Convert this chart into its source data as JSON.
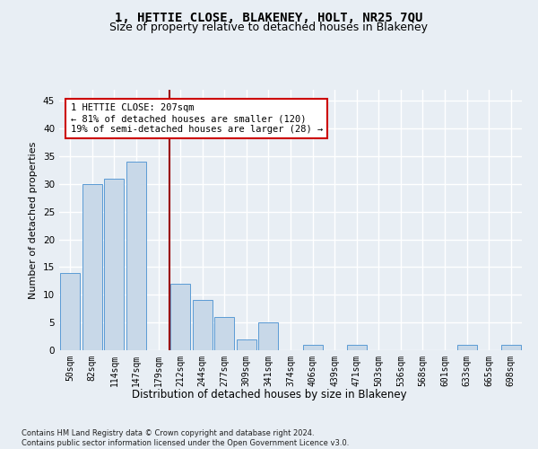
{
  "title": "1, HETTIE CLOSE, BLAKENEY, HOLT, NR25 7QU",
  "subtitle": "Size of property relative to detached houses in Blakeney",
  "xlabel": "Distribution of detached houses by size in Blakeney",
  "ylabel": "Number of detached properties",
  "bar_labels": [
    "50sqm",
    "82sqm",
    "114sqm",
    "147sqm",
    "179sqm",
    "212sqm",
    "244sqm",
    "277sqm",
    "309sqm",
    "341sqm",
    "374sqm",
    "406sqm",
    "439sqm",
    "471sqm",
    "503sqm",
    "536sqm",
    "568sqm",
    "601sqm",
    "633sqm",
    "665sqm",
    "698sqm"
  ],
  "bar_values": [
    14,
    30,
    31,
    34,
    0,
    12,
    9,
    6,
    2,
    5,
    0,
    1,
    0,
    1,
    0,
    0,
    0,
    0,
    1,
    0,
    1
  ],
  "bar_color": "#c8d8e8",
  "bar_edge_color": "#5b9bd5",
  "vline_index": 4.5,
  "vline_color": "#990000",
  "annotation_line1": "1 HETTIE CLOSE: 207sqm",
  "annotation_line2": "← 81% of detached houses are smaller (120)",
  "annotation_line3": "19% of semi-detached houses are larger (28) →",
  "annotation_box_color": "#ffffff",
  "annotation_box_edge": "#cc0000",
  "ylim": [
    0,
    47
  ],
  "yticks": [
    0,
    5,
    10,
    15,
    20,
    25,
    30,
    35,
    40,
    45
  ],
  "footer": "Contains HM Land Registry data © Crown copyright and database right 2024.\nContains public sector information licensed under the Open Government Licence v3.0.",
  "bg_color": "#e8eef4",
  "grid_color": "#ffffff",
  "title_fontsize": 10,
  "subtitle_fontsize": 9,
  "tick_fontsize": 7,
  "ylabel_fontsize": 8,
  "xlabel_fontsize": 8.5,
  "footer_fontsize": 6
}
